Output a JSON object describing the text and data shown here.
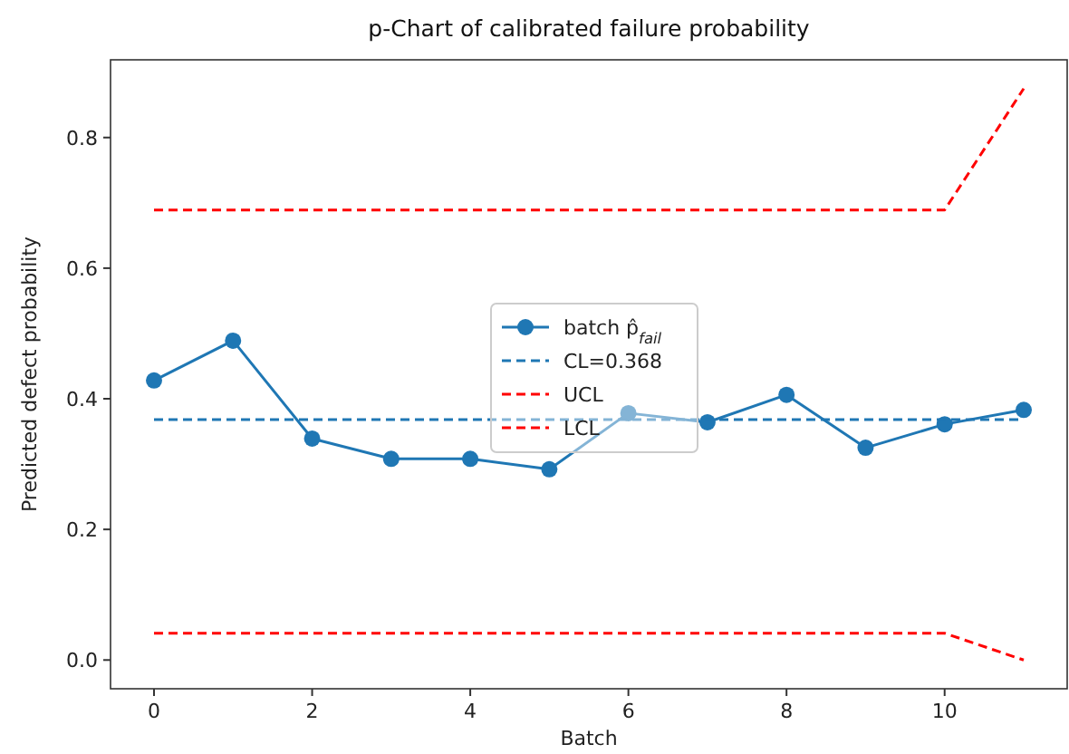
{
  "chart_data": {
    "type": "line",
    "title": "p-Chart of calibrated failure probability",
    "xlabel": "Batch",
    "ylabel": "Predicted defect probability",
    "x": [
      0,
      1,
      2,
      3,
      4,
      5,
      6,
      7,
      8,
      9,
      10,
      11
    ],
    "series": [
      {
        "name": "batch p̂$_{fail}$",
        "color": "#1f77b4",
        "marker": "circle",
        "line_style": "solid",
        "values": [
          0.428,
          0.489,
          0.339,
          0.308,
          0.308,
          0.292,
          0.378,
          0.364,
          0.406,
          0.325,
          0.361,
          0.383
        ]
      },
      {
        "name": "CL=0.368",
        "color": "#1f77b4",
        "marker": "none",
        "line_style": "dashed",
        "x": [
          0,
          11
        ],
        "values": [
          0.368,
          0.368
        ]
      },
      {
        "name": "UCL",
        "color": "#ff0000",
        "marker": "none",
        "line_style": "dashed",
        "x": [
          0,
          10,
          11
        ],
        "values": [
          0.689,
          0.689,
          0.875
        ]
      },
      {
        "name": "LCL",
        "color": "#ff0000",
        "marker": "none",
        "line_style": "dashed",
        "x": [
          0,
          10,
          11
        ],
        "values": [
          0.041,
          0.041,
          0.0
        ]
      }
    ],
    "xlim": [
      -0.55,
      11.55
    ],
    "xticks": [
      0,
      2,
      4,
      6,
      8,
      10
    ],
    "ylim": [
      -0.044,
      0.919
    ],
    "yticks": [
      {
        "value": 0,
        "label": "0.0"
      },
      {
        "value": 0.2,
        "label": "0.2"
      },
      {
        "value": 0.4,
        "label": "0.4"
      },
      {
        "value": 0.6,
        "label": "0.6"
      },
      {
        "value": 0.8,
        "label": "0.8"
      }
    ],
    "grid": false,
    "legend": "center"
  }
}
